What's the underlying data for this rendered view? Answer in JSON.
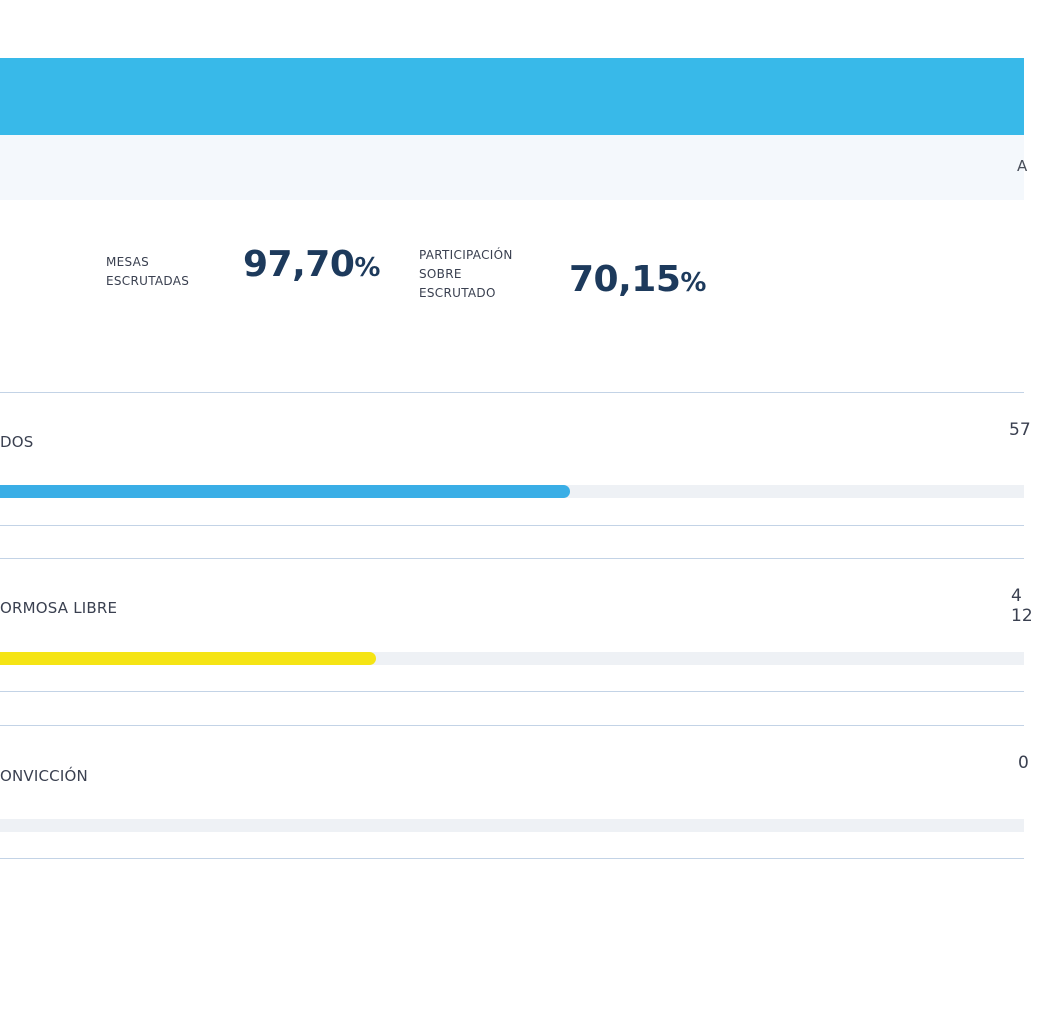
{
  "header": {
    "subbar_right_text": "A"
  },
  "stats": {
    "mesas": {
      "label_lines": [
        "MESAS",
        "ESCRUTADAS"
      ],
      "value": "97,70",
      "unit": "%"
    },
    "participacion": {
      "label_lines": [
        "PARTICIPACIÓN",
        "SOBRE",
        "ESCRUTADO"
      ],
      "value": "70,15",
      "unit": "%"
    }
  },
  "results": [
    {
      "name": "DOS",
      "edge_lines": [
        "57",
        ""
      ],
      "color": "#3aaee6",
      "bar_fraction": 0.557
    },
    {
      "name": "ORMOSA LIBRE",
      "edge_lines": [
        "4",
        "12"
      ],
      "color": "#f5e414",
      "bar_fraction": 0.367
    },
    {
      "name": "ONVICCIÓN",
      "edge_lines": [
        "0",
        ""
      ],
      "color": "#c9ced6",
      "bar_fraction": 0.0
    }
  ]
}
